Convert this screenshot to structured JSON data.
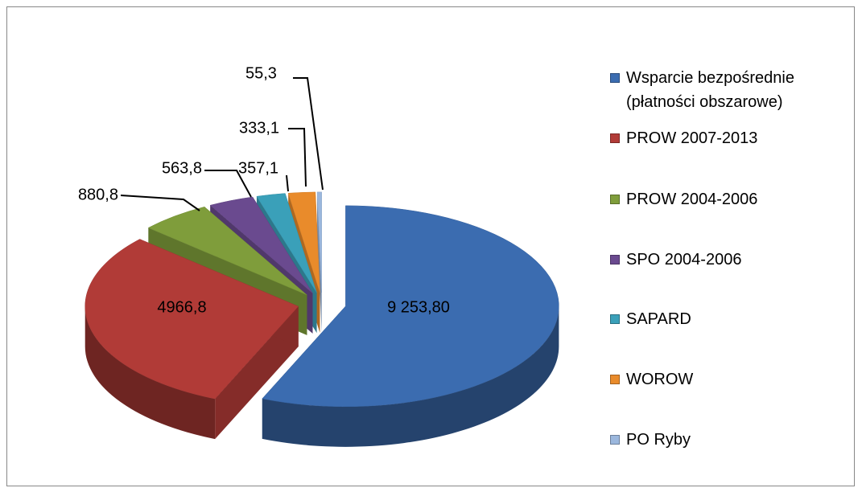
{
  "chart_data": {
    "type": "pie3d",
    "categories": [
      "Wsparcie bezpośrednie (płatności obszarowe)",
      "PROW 2007-2013",
      "PROW 2004-2006",
      "SPO 2004-2006",
      "SAPARD",
      "WOROW",
      "PO Ryby"
    ],
    "values": [
      9253.8,
      4966.8,
      880.8,
      563.8,
      357.1,
      333.1,
      55.3
    ],
    "value_labels": [
      "9 253,80",
      "4966,8",
      "880,8",
      "563,8",
      "357,1",
      "333,1",
      "55,3"
    ],
    "colors": [
      "#3b6cb0",
      "#b13b37",
      "#7f9d3b",
      "#6a4a8f",
      "#3aa0b9",
      "#e98b2b",
      "#9bb7dd"
    ],
    "legend": "right"
  }
}
